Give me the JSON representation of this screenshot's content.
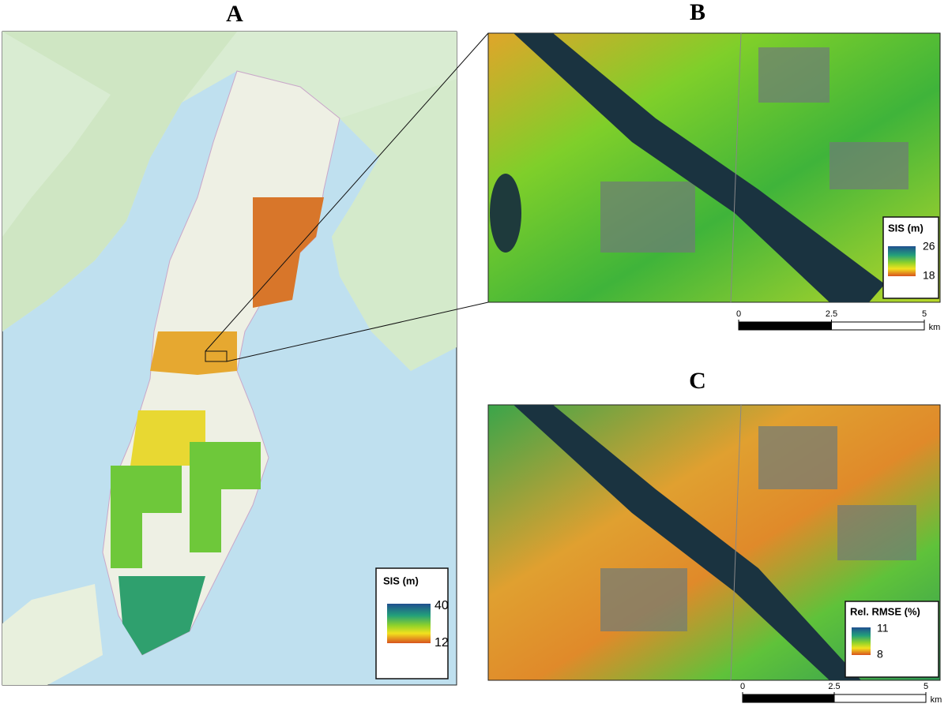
{
  "panels": [
    {
      "label": "A",
      "legend": {
        "title": "SIS (m)",
        "ticks": [
          40,
          12
        ]
      }
    },
    {
      "label": "B",
      "legend": {
        "title": "SIS (m)",
        "ticks": [
          26,
          18
        ]
      },
      "scale": {
        "ticks": [
          0,
          2.5,
          5
        ],
        "unit": "km"
      }
    },
    {
      "label": "C",
      "legend": {
        "title": "Rel. RMSE (%)",
        "ticks": [
          11,
          8
        ]
      },
      "scale": {
        "ticks": [
          0,
          2.5,
          5
        ],
        "unit": "km"
      }
    }
  ]
}
